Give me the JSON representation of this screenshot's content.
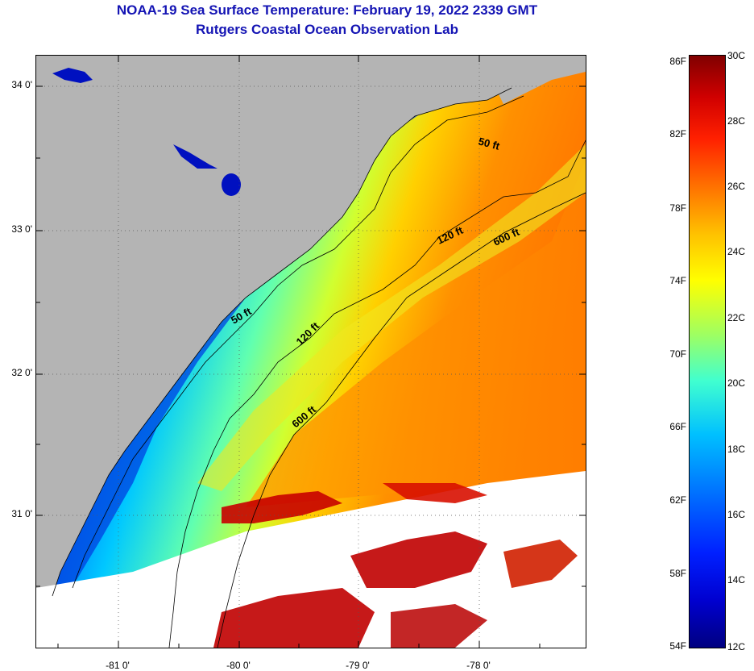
{
  "title": {
    "line1": "NOAA-19 Sea Surface Temperature:  February 19, 2022 2339 GMT",
    "line2": "Rutgers Coastal Ocean Observation Lab"
  },
  "map": {
    "lat_labels": [
      "34 0'",
      "33 0'",
      "32 0'",
      "31 0'"
    ],
    "lon_labels": [
      "-81 0'",
      "-80 0'",
      "-79 0'",
      "-78 0'"
    ],
    "isobath_labels": [
      "50 ft",
      "50 ft",
      "120 ft",
      "120 ft",
      "600 ft",
      "600 ft"
    ],
    "colors": {
      "land": "#b4b4b4",
      "cloud": "#ffffff",
      "contour": "#000000"
    }
  },
  "colorbar": {
    "fahrenheit": [
      "86F",
      "82F",
      "78F",
      "74F",
      "70F",
      "66F",
      "62F",
      "58F",
      "54F"
    ],
    "celsius": [
      "30C",
      "28C",
      "26C",
      "24C",
      "22C",
      "20C",
      "18C",
      "16C",
      "14C",
      "12C"
    ]
  }
}
